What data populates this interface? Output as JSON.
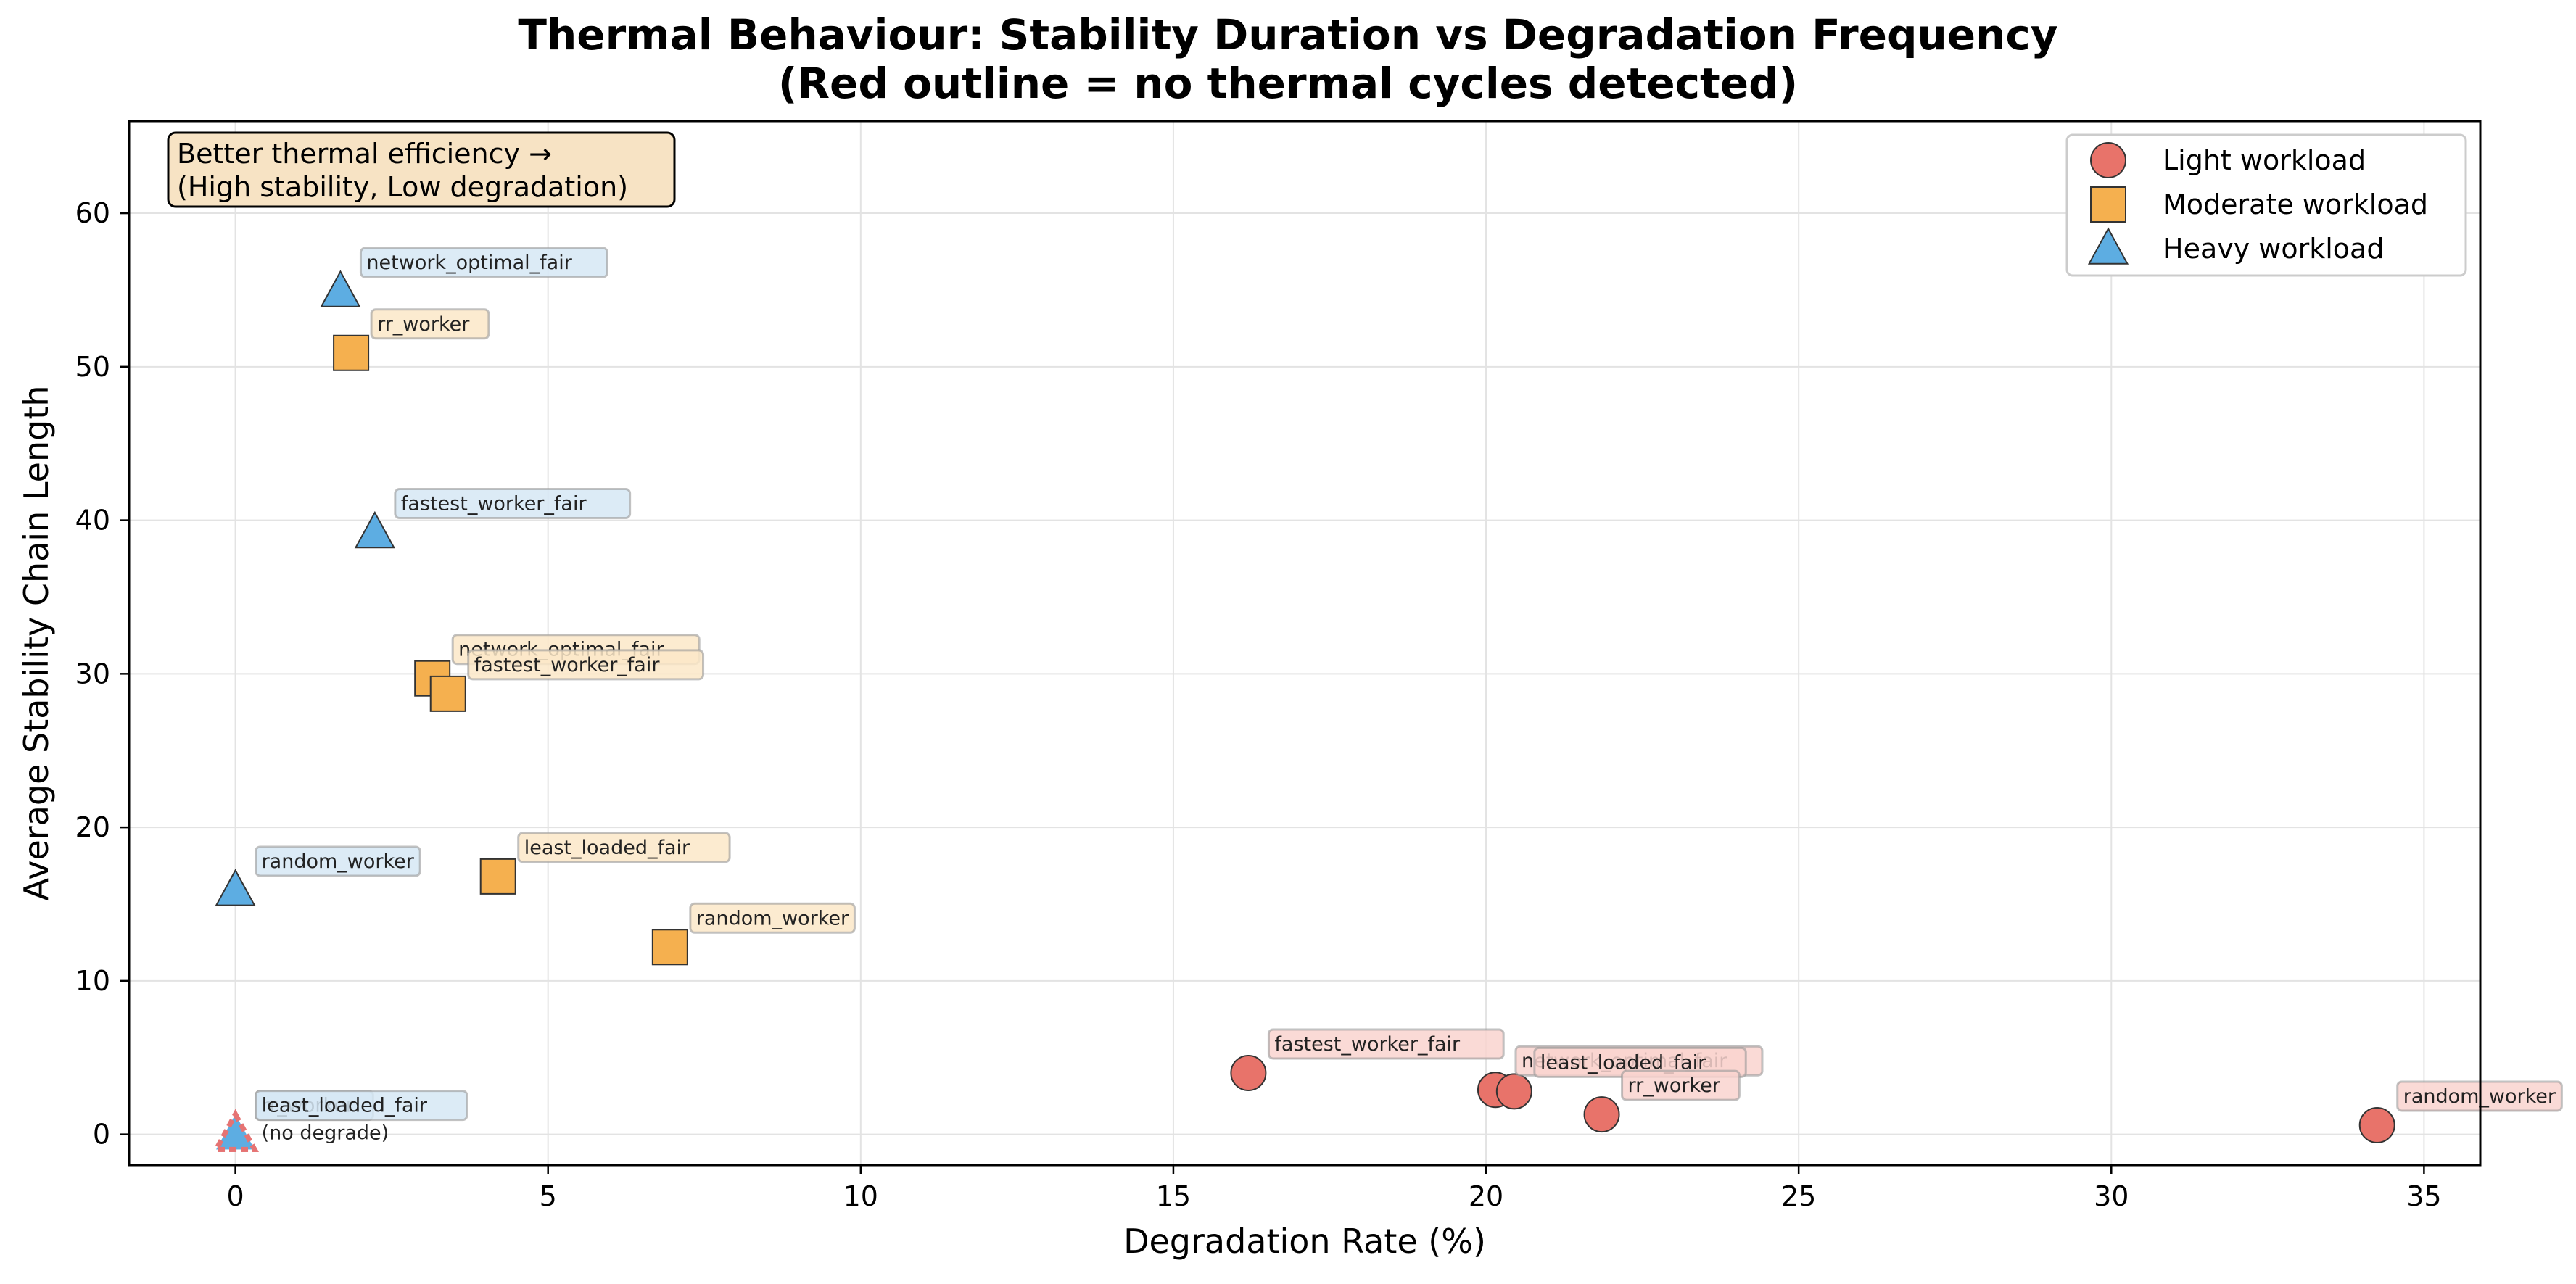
{
  "chart_data": {
    "type": "scatter",
    "title": "Thermal Behaviour: Stability Duration vs Degradation Frequency",
    "subtitle": "(Red outline = no thermal cycles detected)",
    "xlabel": "Degradation Rate (%)",
    "ylabel": "Average Stability Chain Length",
    "xlim": [
      -1.7,
      35.9
    ],
    "ylim": [
      -2,
      66
    ],
    "xticks": [
      0,
      5,
      10,
      15,
      20,
      25,
      30,
      35
    ],
    "yticks": [
      0,
      10,
      20,
      30,
      40,
      50,
      60
    ],
    "grid": true,
    "legend_position": "top-right",
    "note_box": [
      "Better thermal efficiency →",
      "(High stability, Low degradation)"
    ],
    "no_degrade_label": "(no degrade)",
    "series": [
      {
        "name": "Light workload",
        "marker": "circle",
        "color": "#E8736A",
        "points": [
          {
            "label": "fastest_worker_fair",
            "x": 16.2,
            "y": 4.0
          },
          {
            "label": "network_optimal_fair",
            "x": 20.15,
            "y": 2.9
          },
          {
            "label": "least_loaded_fair",
            "x": 20.45,
            "y": 2.8
          },
          {
            "label": "rr_worker",
            "x": 21.85,
            "y": 1.3
          },
          {
            "label": "random_worker",
            "x": 34.25,
            "y": 0.6
          }
        ]
      },
      {
        "name": "Moderate workload",
        "marker": "square",
        "color": "#F5B04F",
        "points": [
          {
            "label": "rr_worker",
            "x": 1.85,
            "y": 50.9
          },
          {
            "label": "network_optimal_fair",
            "x": 3.15,
            "y": 29.7
          },
          {
            "label": "fastest_worker_fair",
            "x": 3.4,
            "y": 28.7
          },
          {
            "label": "least_loaded_fair",
            "x": 4.2,
            "y": 16.8
          },
          {
            "label": "random_worker",
            "x": 6.95,
            "y": 12.2
          }
        ]
      },
      {
        "name": "Heavy workload",
        "marker": "triangle",
        "color": "#5DADE2",
        "points": [
          {
            "label": "network_optimal_fair",
            "x": 1.68,
            "y": 54.9
          },
          {
            "label": "fastest_worker_fair",
            "x": 2.23,
            "y": 39.2
          },
          {
            "label": "random_worker",
            "x": 0.0,
            "y": 15.9
          },
          {
            "label": "rr_worker",
            "x": 0.0,
            "y": 0.0,
            "no_cycles": true
          },
          {
            "label": "least_loaded_fair",
            "x": 0.0,
            "y": 0.0,
            "no_cycles": true
          }
        ]
      }
    ]
  },
  "colors": {
    "light_label_bg": "#F9D3CF",
    "moderate_label_bg": "#FBE7C8",
    "heavy_label_bg": "#D6E8F5",
    "note_bg": "#F7E3C4",
    "no_cycle_outline": "#E57373"
  }
}
